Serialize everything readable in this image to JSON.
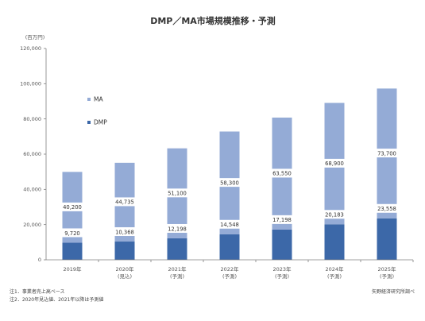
{
  "chart_data": {
    "type": "bar",
    "stacked": true,
    "title": "DMP／MA市場規模推移・予測",
    "unit_label": "(百万円)",
    "ylim": [
      0,
      120000
    ],
    "yticks": [
      0,
      20000,
      40000,
      60000,
      80000,
      100000,
      120000
    ],
    "ytick_labels": [
      "0",
      "20,000",
      "40,000",
      "60,000",
      "80,000",
      "100,000",
      "120,000"
    ],
    "grid": false,
    "categories": [
      {
        "line1": "2019年",
        "line2": ""
      },
      {
        "line1": "2020年",
        "line2": "(見込)"
      },
      {
        "line1": "2021年",
        "line2": "(予測)"
      },
      {
        "line1": "2022年",
        "line2": "(予測)"
      },
      {
        "line1": "2023年",
        "line2": "(予測)"
      },
      {
        "line1": "2024年",
        "line2": "(予測)"
      },
      {
        "line1": "2025年",
        "line2": "(予測)"
      }
    ],
    "series": [
      {
        "name": "DMP",
        "color": "#3c68a8",
        "values": [
          9720,
          10368,
          12198,
          14548,
          17198,
          20183,
          23558
        ],
        "labels": [
          "9,720",
          "10,368",
          "12,198",
          "14,548",
          "17,198",
          "20,183",
          "23,558"
        ]
      },
      {
        "name": "MA",
        "color": "#94abd6",
        "values": [
          40200,
          44735,
          51100,
          58300,
          63550,
          68900,
          73700
        ],
        "labels": [
          "40,200",
          "44,735",
          "51,100",
          "58,300",
          "63,550",
          "68,900",
          "73,700"
        ]
      }
    ],
    "legend_order": [
      "MA",
      "DMP"
    ],
    "legend_position": "top-left inside plot",
    "notes": [
      "注1．事業者売上高ベース",
      "注2．2020年見込値、2021年以降は予測値"
    ],
    "source": "矢野経済研究所調べ"
  }
}
